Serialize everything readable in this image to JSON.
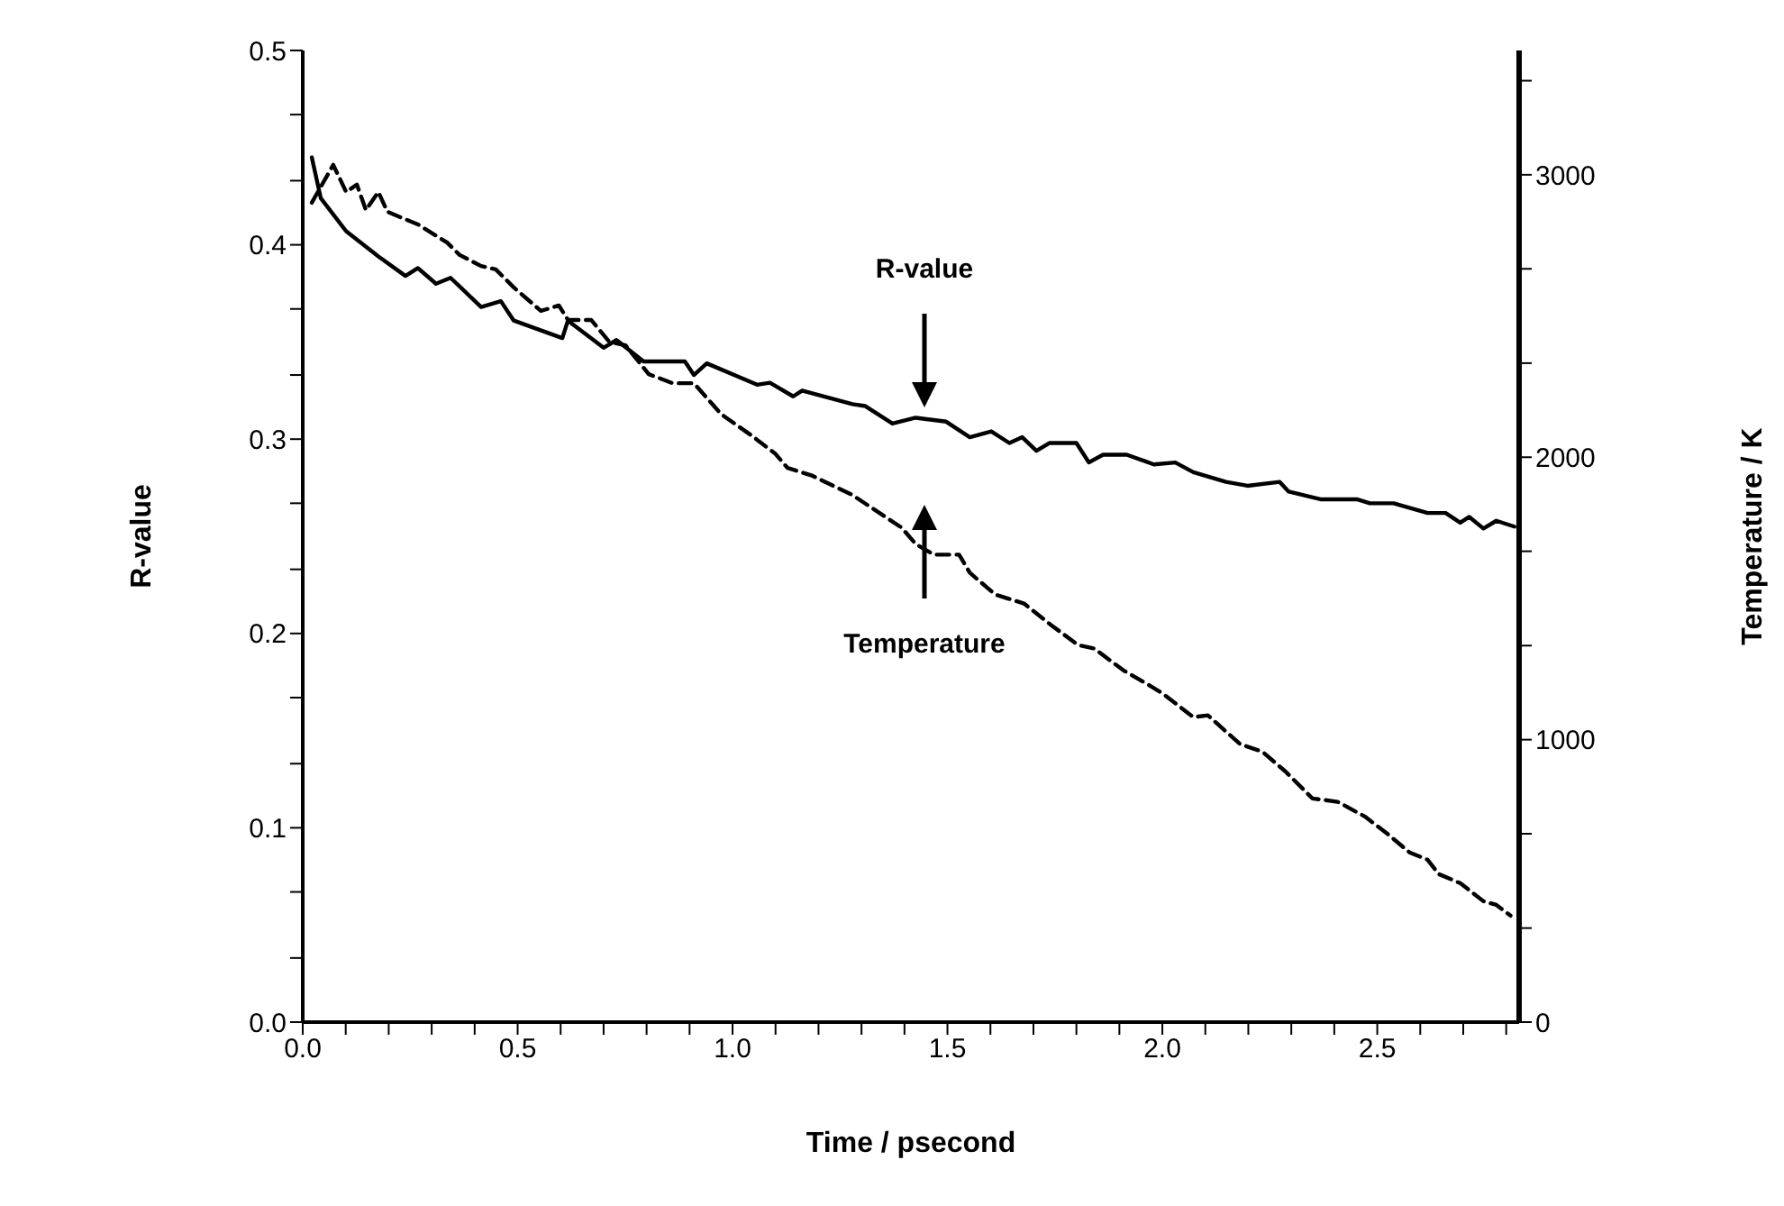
{
  "chart_data": {
    "type": "line",
    "xlabel": "Time / psecond",
    "ylabel": "R-value",
    "y2label": "Temperature / K",
    "xlim": [
      0,
      2.83
    ],
    "xticks": [
      {
        "value": 0,
        "label": "0.0"
      },
      {
        "value": 0.1,
        "label": null
      },
      {
        "value": 0.2,
        "label": null
      },
      {
        "value": 0.3,
        "label": null
      },
      {
        "value": 0.4,
        "label": null
      },
      {
        "value": 0.5,
        "label": "0.5"
      },
      {
        "value": 0.6,
        "label": null
      },
      {
        "value": 0.7,
        "label": null
      },
      {
        "value": 0.8,
        "label": null
      },
      {
        "value": 0.9,
        "label": null
      },
      {
        "value": 1,
        "label": "1.0"
      },
      {
        "value": 1.1,
        "label": null
      },
      {
        "value": 1.2,
        "label": null
      },
      {
        "value": 1.3,
        "label": null
      },
      {
        "value": 1.4,
        "label": null
      },
      {
        "value": 1.5,
        "label": "1.5"
      },
      {
        "value": 1.6,
        "label": null
      },
      {
        "value": 1.7,
        "label": null
      },
      {
        "value": 1.8,
        "label": null
      },
      {
        "value": 1.9,
        "label": null
      },
      {
        "value": 2,
        "label": "2.0"
      },
      {
        "value": 2.1,
        "label": null
      },
      {
        "value": 2.2,
        "label": null
      },
      {
        "value": 2.3,
        "label": null
      },
      {
        "value": 2.4,
        "label": null
      },
      {
        "value": 2.5,
        "label": "2.5"
      },
      {
        "value": 2.6,
        "label": null
      },
      {
        "value": 2.7,
        "label": null
      },
      {
        "value": 2.8,
        "label": null
      }
    ],
    "ylim": [
      0,
      0.5
    ],
    "yticks": [
      {
        "value": 0,
        "label": "0.0"
      },
      {
        "value": 0.033,
        "label": null
      },
      {
        "value": 0.067,
        "label": null
      },
      {
        "value": 0.1,
        "label": "0.1"
      },
      {
        "value": 0.133,
        "label": null
      },
      {
        "value": 0.167,
        "label": null
      },
      {
        "value": 0.2,
        "label": "0.2"
      },
      {
        "value": 0.233,
        "label": null
      },
      {
        "value": 0.267,
        "label": null
      },
      {
        "value": 0.3,
        "label": "0.3"
      },
      {
        "value": 0.333,
        "label": null
      },
      {
        "value": 0.367,
        "label": null
      },
      {
        "value": 0.4,
        "label": "0.4"
      },
      {
        "value": 0.433,
        "label": null
      },
      {
        "value": 0.467,
        "label": null
      },
      {
        "value": 0.5,
        "label": "0.5"
      }
    ],
    "y2lim": [
      0,
      3440
    ],
    "y2ticks": [
      0,
      {
        "value": 333,
        "label": null
      },
      {
        "value": 667,
        "label": null
      },
      1000,
      {
        "value": 1333,
        "label": null
      },
      {
        "value": 1667,
        "label": null
      },
      2000,
      {
        "value": 2333,
        "label": null
      },
      {
        "value": 2667,
        "label": null
      },
      3000,
      {
        "value": 3333,
        "label": null
      }
    ],
    "marker": "none",
    "annotations": [
      "R-value",
      "Temperature"
    ],
    "series": [
      {
        "color": "#000000",
        "line_style": "solid",
        "x": [
          0.021,
          0.042,
          0.101,
          0.176,
          0.239,
          0.268,
          0.31,
          0.344,
          0.415,
          0.461,
          0.491,
          0.604,
          0.617,
          0.7,
          0.73,
          0.793,
          0.889,
          0.91,
          0.94,
          1.057,
          1.087,
          1.141,
          1.162,
          1.279,
          1.309,
          1.372,
          1.426,
          1.497,
          1.552,
          1.602,
          1.644,
          1.674,
          1.707,
          1.737,
          1.8,
          1.829,
          1.862,
          1.917,
          1.98,
          2.03,
          2.072,
          2.148,
          2.198,
          2.273,
          2.294,
          2.37,
          2.454,
          2.483,
          2.538,
          2.617,
          2.659,
          2.693,
          2.714,
          2.747,
          2.777,
          2.819
        ],
        "values": [
          0.445,
          0.424,
          0.407,
          0.394,
          0.384,
          0.388,
          0.38,
          0.383,
          0.368,
          0.371,
          0.361,
          0.352,
          0.361,
          0.347,
          0.351,
          0.34,
          0.34,
          0.333,
          0.339,
          0.328,
          0.329,
          0.322,
          0.325,
          0.318,
          0.317,
          0.308,
          0.311,
          0.309,
          0.301,
          0.304,
          0.298,
          0.301,
          0.294,
          0.298,
          0.298,
          0.288,
          0.292,
          0.292,
          0.287,
          0.288,
          0.283,
          0.278,
          0.276,
          0.278,
          0.273,
          0.269,
          0.269,
          0.267,
          0.267,
          0.262,
          0.262,
          0.257,
          0.26,
          0.254,
          0.258,
          0.255
        ]
      },
      {
        "color": "#000000",
        "line_style": "dashed",
        "axis": "y2",
        "x": [
          0.021,
          0.071,
          0.101,
          0.126,
          0.147,
          0.176,
          0.197,
          0.268,
          0.336,
          0.365,
          0.415,
          0.449,
          0.491,
          0.554,
          0.596,
          0.617,
          0.671,
          0.713,
          0.751,
          0.805,
          0.86,
          0.91,
          0.973,
          1.044,
          1.099,
          1.128,
          1.183,
          1.279,
          1.393,
          1.426,
          1.468,
          1.527,
          1.552,
          1.611,
          1.678,
          1.741,
          1.804,
          1.841,
          1.909,
          1.967,
          2.001,
          2.072,
          2.106,
          2.181,
          2.232,
          2.286,
          2.349,
          2.408,
          2.471,
          2.525,
          2.575,
          2.617,
          2.643,
          2.693,
          2.747,
          2.777,
          2.81
        ],
        "values": [
          2901,
          3035,
          2939,
          2965,
          2875,
          2939,
          2869,
          2824,
          2760,
          2716,
          2677,
          2665,
          2601,
          2518,
          2537,
          2486,
          2486,
          2409,
          2396,
          2294,
          2262,
          2262,
          2153,
          2077,
          2013,
          1962,
          1936,
          1866,
          1751,
          1693,
          1655,
          1655,
          1591,
          1514,
          1482,
          1406,
          1335,
          1323,
          1246,
          1195,
          1163,
          1080,
          1086,
          984,
          958,
          888,
          792,
          780,
          728,
          665,
          601,
          575,
          524,
          492,
          428,
          415,
          377
        ]
      }
    ]
  }
}
